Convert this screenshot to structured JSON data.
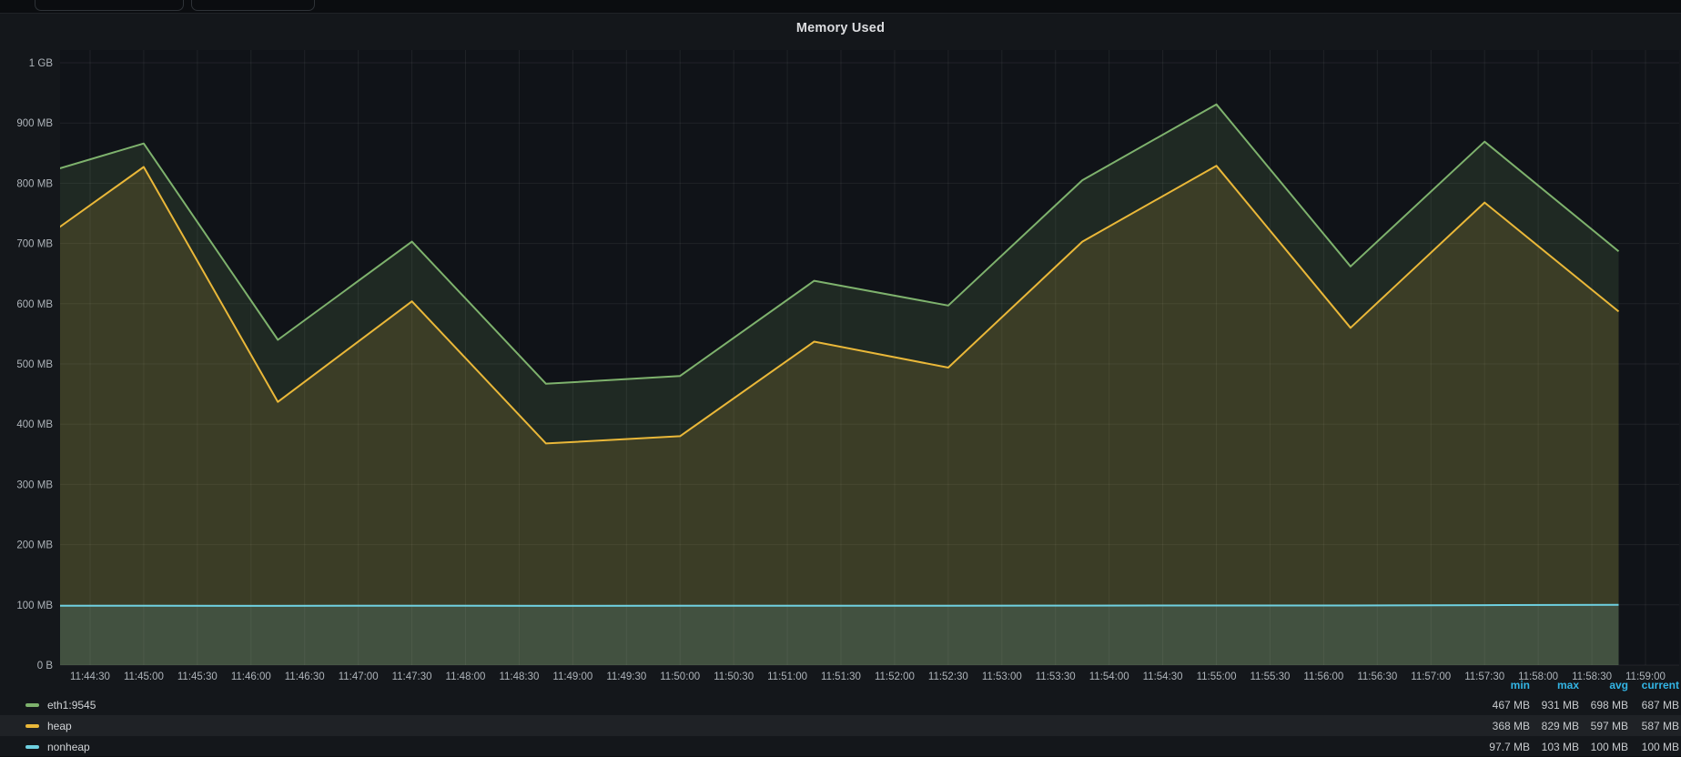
{
  "panel": {
    "title": "Memory Used"
  },
  "colors": {
    "page_bg": "#0b0d10",
    "panel_bg": "#14171b",
    "plot_bg": "#101318",
    "grid": "rgba(255,255,255,0.065)",
    "axis_text": "#aeb4ba",
    "legend_header": "#33b5e5",
    "fill_alpha": 0.14
  },
  "chart_data": {
    "type": "area",
    "title": "Memory Used",
    "ylabel": "",
    "xlabel": "",
    "y_axis": {
      "min_mb": 0,
      "max_mb": 1000,
      "tick_step_mb": 100,
      "tick_labels": [
        "0 B",
        "100 MB",
        "200 MB",
        "300 MB",
        "400 MB",
        "500 MB",
        "600 MB",
        "700 MB",
        "800 MB",
        "900 MB",
        "1 GB"
      ]
    },
    "x_axis": {
      "tick_interval_s": 30,
      "tick_labels": [
        "11:44:30",
        "11:45:00",
        "11:45:30",
        "11:46:00",
        "11:46:30",
        "11:47:00",
        "11:47:30",
        "11:48:00",
        "11:48:30",
        "11:49:00",
        "11:49:30",
        "11:50:00",
        "11:50:30",
        "11:51:00",
        "11:51:30",
        "11:52:00",
        "11:52:30",
        "11:53:00",
        "11:53:30",
        "11:54:00",
        "11:54:30",
        "11:55:00",
        "11:55:30",
        "11:56:00",
        "11:56:30",
        "11:57:00",
        "11:57:30",
        "11:58:00",
        "11:58:30",
        "11:59:00"
      ]
    },
    "point_times": [
      "11:43:45",
      "11:45:00",
      "11:46:15",
      "11:47:30",
      "11:48:45",
      "11:50:00",
      "11:51:15",
      "11:52:30",
      "11:53:45",
      "11:55:00",
      "11:56:15",
      "11:57:30",
      "11:58:45"
    ],
    "series": [
      {
        "name": "eth1:9545",
        "color": "#7EB26D",
        "values_mb": [
          800,
          866,
          540,
          703,
          467,
          480,
          638,
          597,
          805,
          931,
          662,
          869,
          687
        ],
        "stats": {
          "min": "467 MB",
          "max": "931 MB",
          "avg": "698 MB",
          "current": "687 MB"
        }
      },
      {
        "name": "heap",
        "color": "#EAB839",
        "values_mb": [
          668,
          827,
          437,
          604,
          368,
          380,
          537,
          494,
          703,
          829,
          560,
          768,
          587
        ],
        "stats": {
          "min": "368 MB",
          "max": "829 MB",
          "avg": "597 MB",
          "current": "587 MB"
        }
      },
      {
        "name": "nonheap",
        "color": "#6ED0E0",
        "values_mb": [
          98.5,
          98.5,
          98.3,
          98.6,
          98.4,
          98.5,
          98.6,
          98.7,
          98.8,
          99.0,
          99.0,
          99.5,
          100
        ],
        "stats": {
          "min": "97.7 MB",
          "max": "103 MB",
          "avg": "100 MB",
          "current": "100 MB"
        }
      }
    ],
    "legend": {
      "position": "bottom",
      "headers": [
        "min",
        "max",
        "avg",
        "current"
      ],
      "highlighted_row": "heap"
    },
    "grid": true
  }
}
